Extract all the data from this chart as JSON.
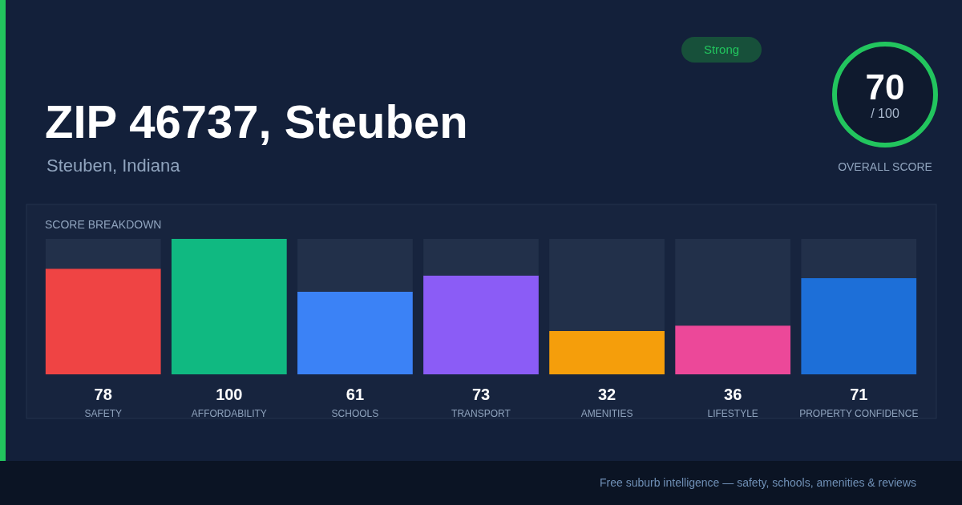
{
  "chart_data": {
    "type": "bar",
    "title": "ZIP 46737, Steuben",
    "subtitle": "Steuben, Indiana",
    "categories": [
      "SAFETY",
      "AFFORDABILITY",
      "SCHOOLS",
      "TRANSPORT",
      "AMENITIES",
      "LIFESTYLE",
      "PROPERTY CONFIDENCE"
    ],
    "stacked": true,
    "series": [
      {
        "colors": [
          "#ef4444",
          "#10b981",
          "#3b82f6",
          "#8b5cf6",
          "#f59e0b",
          "#ec4899",
          "#1d6fd8"
        ],
        "values": [
          78,
          100,
          61,
          73,
          32,
          36,
          71
        ],
        "value_labels": [
          "78",
          "100",
          "61",
          "73",
          "32",
          "36",
          "71"
        ]
      },
      {
        "color": "#22304a",
        "values": [
          22,
          0,
          39,
          27,
          68,
          64,
          29
        ]
      }
    ],
    "ylim": [
      0,
      100
    ],
    "tick_labels": "x",
    "grid": false,
    "annotations": [
      "SCORE BREAKDOWN",
      "Strong",
      "70",
      "/ 100",
      "OVERALL SCORE",
      "Free suburb intelligence — safety, schools, amenities & reviews"
    ]
  }
}
